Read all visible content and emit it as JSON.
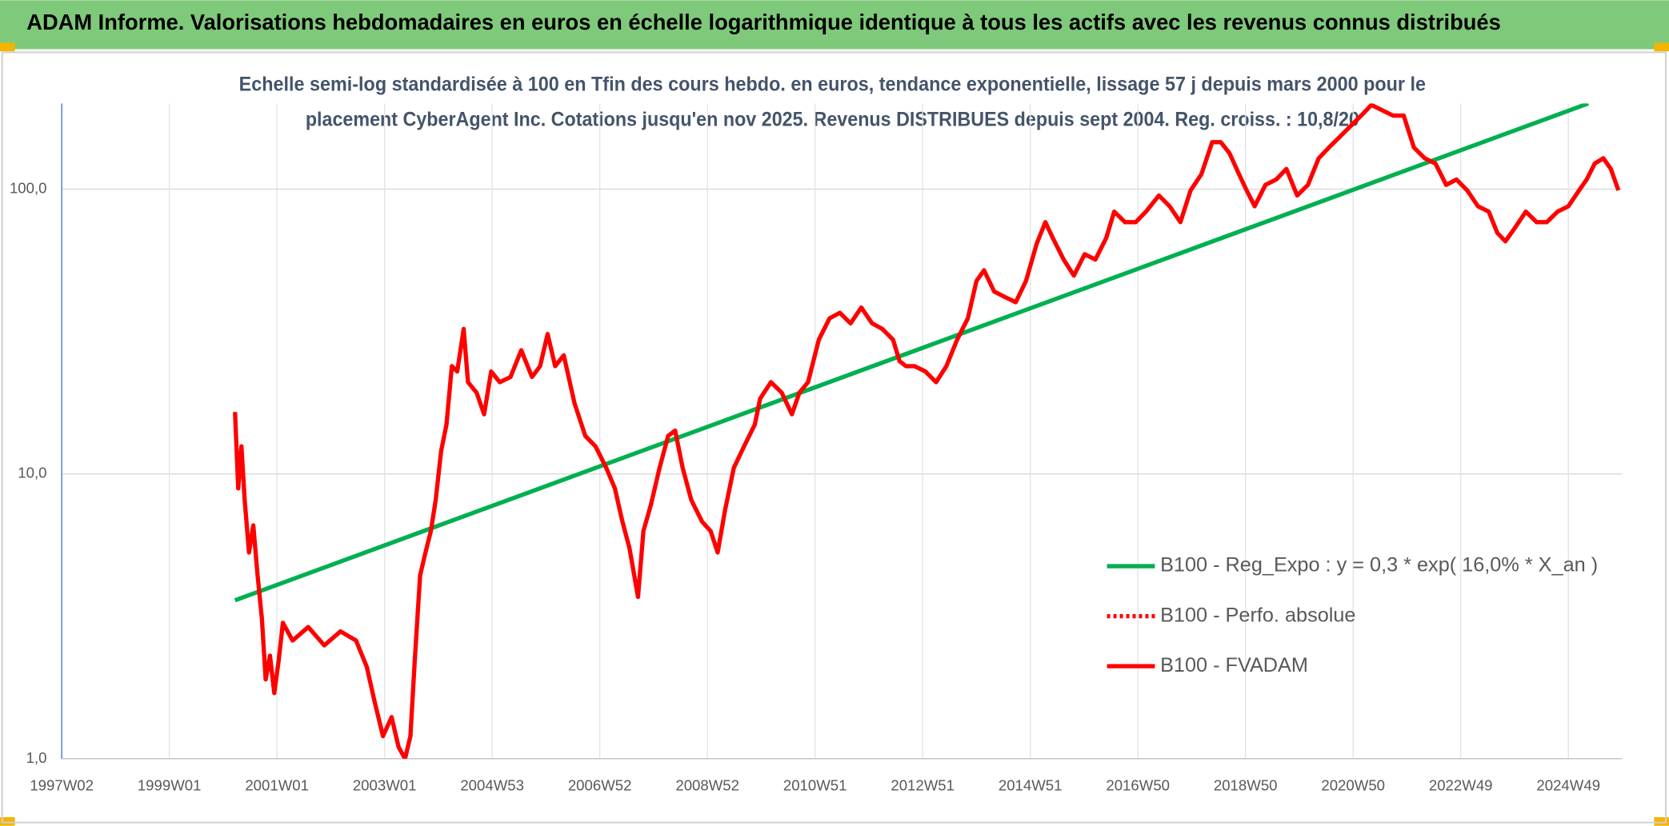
{
  "chart_data": {
    "type": "line",
    "title": "ADAM Informe. Valorisations hebdomadaires en euros en échelle logarithmique identique à tous les actifs avec les revenus connus distribués",
    "subtitle": [
      "Echelle semi-log standardisée à 100 en Tfin des cours hebdo. en euros, tendance exponentielle, lissage 57 j depuis mars 2000 pour le",
      "placement CyberAgent Inc. Cotations jusqu'en nov 2025. Revenus DISTRIBUES depuis sept 2004. Reg. croiss. : 10,8/20"
    ],
    "log_y": true,
    "grid": true,
    "legend_position": "lower right",
    "xlim": [
      1997.0,
      2026.0
    ],
    "xticks": [
      {
        "value": 1997.0,
        "label": "1997W02"
      },
      {
        "value": 1999.0,
        "label": "1999W01"
      },
      {
        "value": 2001.0,
        "label": "2001W01"
      },
      {
        "value": 2003.0,
        "label": "2003W01"
      },
      {
        "value": 2005.0,
        "label": "2004W53"
      },
      {
        "value": 2007.0,
        "label": "2006W52"
      },
      {
        "value": 2009.0,
        "label": "2008W52"
      },
      {
        "value": 2011.0,
        "label": "2010W51"
      },
      {
        "value": 2013.0,
        "label": "2012W51"
      },
      {
        "value": 2015.0,
        "label": "2014W51"
      },
      {
        "value": 2017.0,
        "label": "2016W50"
      },
      {
        "value": 2019.0,
        "label": "2018W50"
      },
      {
        "value": 2021.0,
        "label": "2020W50"
      },
      {
        "value": 2023.0,
        "label": "2022W49"
      },
      {
        "value": 2025.0,
        "label": "2024W49"
      }
    ],
    "ylim": [
      1,
      200
    ],
    "yticks": [
      {
        "value": 1,
        "label": "1,0"
      },
      {
        "value": 10,
        "label": "10,0"
      },
      {
        "value": 100,
        "label": "100,0"
      }
    ],
    "series": [
      {
        "name": "B100 - Reg_Expo : y = 0,3 * exp( 16,0% *  X_an )",
        "color": "#00b050",
        "style": "solid",
        "x": [
          2000.22,
          2025.37
        ],
        "values": [
          3.6,
          200
        ]
      },
      {
        "name": "B100 - Perfo. absolue",
        "color": "#ff0000",
        "style": "dotted",
        "x": [],
        "values": []
      },
      {
        "name": "B100 - FVADAM",
        "color": "#ff0000",
        "style": "solid",
        "x": [
          2000.22,
          2000.28,
          2000.34,
          2000.4,
          2000.48,
          2000.56,
          2000.64,
          2000.72,
          2000.79,
          2000.87,
          2000.95,
          2001.03,
          2001.11,
          2001.29,
          2001.58,
          2001.88,
          2002.18,
          2002.47,
          2002.67,
          2002.81,
          2002.97,
          2003.13,
          2003.26,
          2003.38,
          2003.48,
          2003.56,
          2003.66,
          2003.76,
          2003.86,
          2003.95,
          2004.05,
          2004.15,
          2004.25,
          2004.35,
          2004.47,
          2004.55,
          2004.71,
          2004.85,
          2004.98,
          2005.14,
          2005.34,
          2005.54,
          2005.74,
          2005.89,
          2006.03,
          2006.17,
          2006.33,
          2006.53,
          2006.73,
          2006.92,
          2007.12,
          2007.28,
          2007.42,
          2007.55,
          2007.71,
          2007.81,
          2007.95,
          2008.11,
          2008.27,
          2008.4,
          2008.54,
          2008.7,
          2008.9,
          2009.06,
          2009.19,
          2009.33,
          2009.49,
          2009.68,
          2009.88,
          2009.98,
          2010.18,
          2010.38,
          2010.57,
          2010.71,
          2010.87,
          2011.07,
          2011.27,
          2011.46,
          2011.66,
          2011.86,
          2012.06,
          2012.25,
          2012.45,
          2012.57,
          2012.69,
          2012.85,
          2013.05,
          2013.25,
          2013.44,
          2013.64,
          2013.84,
          2014.0,
          2014.14,
          2014.33,
          2014.53,
          2014.73,
          2014.92,
          2015.12,
          2015.28,
          2015.42,
          2015.62,
          2015.81,
          2016.01,
          2016.21,
          2016.41,
          2016.56,
          2016.76,
          2016.96,
          2017.15,
          2017.39,
          2017.59,
          2017.79,
          2017.98,
          2018.18,
          2018.38,
          2018.54,
          2018.7,
          2018.88,
          2019.02,
          2019.17,
          2019.37,
          2019.57,
          2019.76,
          2019.96,
          2020.16,
          2020.36,
          2020.55,
          2020.75,
          2020.95,
          2021.15,
          2021.34,
          2021.54,
          2021.74,
          2021.94,
          2022.13,
          2022.33,
          2022.53,
          2022.73,
          2022.92,
          2023.12,
          2023.32,
          2023.52,
          2023.68,
          2023.83,
          2024.01,
          2024.21,
          2024.41,
          2024.6,
          2024.8,
          2025.0,
          2025.2,
          2025.34,
          2025.49,
          2025.65,
          2025.79,
          2025.93
        ],
        "values": [
          16.5,
          8.9,
          12.5,
          8.1,
          5.3,
          6.6,
          4.4,
          3.1,
          1.9,
          2.3,
          1.7,
          2.2,
          3.0,
          2.6,
          2.9,
          2.5,
          2.8,
          2.6,
          2.1,
          1.6,
          1.2,
          1.4,
          1.1,
          1.0,
          1.2,
          2.2,
          4.4,
          5.3,
          6.3,
          8.1,
          12.0,
          14.9,
          23.9,
          22.9,
          32.3,
          21.0,
          19.3,
          16.2,
          22.9,
          21.0,
          21.9,
          27.2,
          21.9,
          23.9,
          31.0,
          23.9,
          26.1,
          17.7,
          13.6,
          12.5,
          10.5,
          8.9,
          6.8,
          5.5,
          3.7,
          6.3,
          7.8,
          10.5,
          13.6,
          14.2,
          10.5,
          8.1,
          6.8,
          6.3,
          5.3,
          7.5,
          10.5,
          12.5,
          14.9,
          18.4,
          21.0,
          19.3,
          16.2,
          19.3,
          21.0,
          29.6,
          35.2,
          36.8,
          33.8,
          38.4,
          33.8,
          32.3,
          29.6,
          24.9,
          23.9,
          23.9,
          22.9,
          21.0,
          23.9,
          29.6,
          35.2,
          47.6,
          51.9,
          43.7,
          41.8,
          40.1,
          47.6,
          64.4,
          76.6,
          67.3,
          56.6,
          49.7,
          59.1,
          56.6,
          67.3,
          83.4,
          76.6,
          76.6,
          83.4,
          95.0,
          87.1,
          76.6,
          99.1,
          112.8,
          146.2,
          146.2,
          134.0,
          112.8,
          99.1,
          87.1,
          103.5,
          108.1,
          117.8,
          95.0,
          103.5,
          128.4,
          140.0,
          152.6,
          166.3,
          181.3,
          197.6,
          189.3,
          181.3,
          181.3,
          140.0,
          128.4,
          123.0,
          103.5,
          108.1,
          99.1,
          87.1,
          83.4,
          70.2,
          65.6,
          73.3,
          83.4,
          76.6,
          76.6,
          83.4,
          87.1,
          99.1,
          108.1,
          123.0,
          128.4,
          117.8,
          99.1
        ]
      }
    ]
  }
}
